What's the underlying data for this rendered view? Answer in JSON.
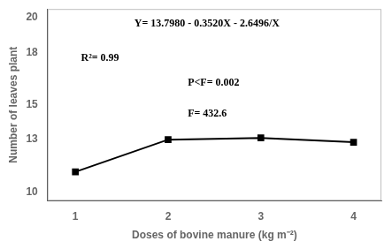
{
  "chart_data": {
    "type": "line",
    "x_label": "Doses of bovine manure (kg m⁻²)",
    "y_label": "Number of leaves plant",
    "x": [
      1,
      2,
      3,
      4
    ],
    "values": [
      11.15,
      13.0,
      13.1,
      12.85
    ],
    "color": "#000000",
    "marker": "square",
    "line_style": "solid",
    "xlim": [
      0.7,
      4.3
    ],
    "ylim": [
      9.5,
      20.5
    ],
    "xticks": [
      1,
      2,
      3,
      4
    ],
    "yticks": [
      10,
      13,
      15,
      18,
      20
    ],
    "grid": false,
    "annotations": [
      "Y= 13.7980 - 0.3520X - 2.6496/X",
      "R²= 0.99",
      "P<F= 0.002",
      "F= 432.6"
    ]
  }
}
